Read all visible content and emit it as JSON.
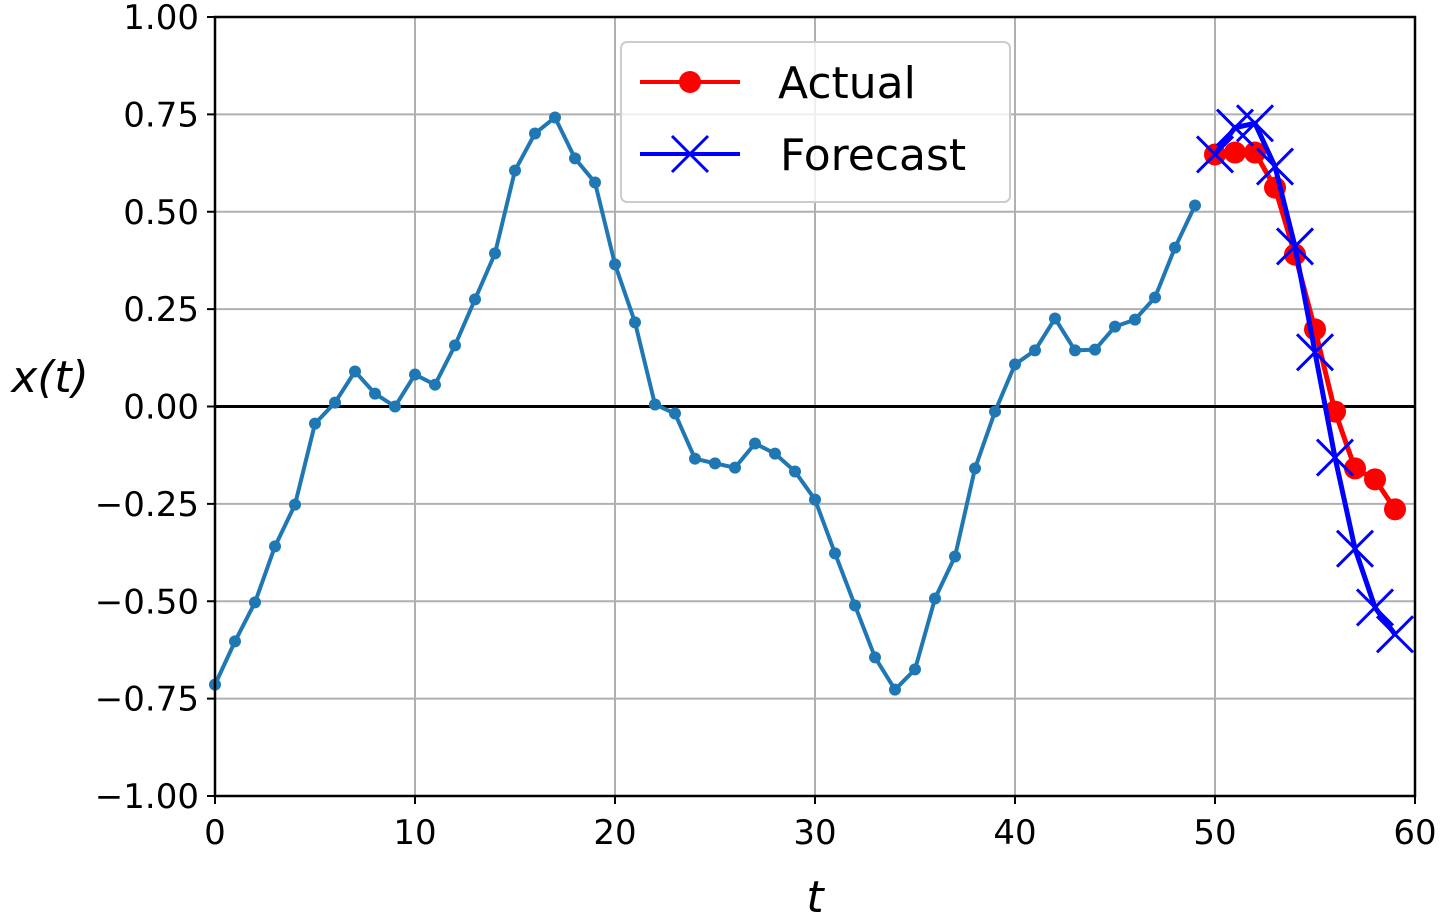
{
  "chart_data": {
    "type": "line",
    "xlabel": "t",
    "ylabel": "x(t)",
    "xlim": [
      0,
      60
    ],
    "ylim": [
      -1.0,
      1.0
    ],
    "xticks": [
      "0",
      "10",
      "20",
      "30",
      "40",
      "50",
      "60"
    ],
    "yticks": [
      "−1.00",
      "−0.75",
      "−0.50",
      "−0.25",
      "0.00",
      "0.25",
      "0.50",
      "0.75",
      "1.00"
    ],
    "grid": true,
    "zero_line": true,
    "legend_position": "top-center",
    "series": [
      {
        "color": "#1f77b4",
        "marker": "dot",
        "x": [
          0,
          1,
          2,
          3,
          4,
          5,
          6,
          7,
          8,
          9,
          10,
          11,
          12,
          13,
          14,
          15,
          16,
          17,
          18,
          19,
          20,
          21,
          22,
          23,
          24,
          25,
          26,
          27,
          28,
          29,
          30,
          31,
          32,
          33,
          34,
          35,
          36,
          37,
          38,
          39,
          40,
          41,
          42,
          43,
          44,
          45,
          46,
          47,
          48,
          49
        ],
        "y": [
          -0.714,
          -0.603,
          -0.503,
          -0.359,
          -0.252,
          -0.044,
          0.01,
          0.09,
          0.033,
          0.0,
          0.082,
          0.056,
          0.157,
          0.275,
          0.393,
          0.606,
          0.701,
          0.742,
          0.637,
          0.575,
          0.365,
          0.216,
          0.005,
          -0.018,
          -0.134,
          -0.146,
          -0.157,
          -0.095,
          -0.121,
          -0.167,
          -0.239,
          -0.377,
          -0.511,
          -0.644,
          -0.727,
          -0.675,
          -0.493,
          -0.385,
          -0.159,
          -0.013,
          0.108,
          0.144,
          0.226,
          0.144,
          0.146,
          0.205,
          0.223,
          0.28,
          0.408,
          0.516
        ]
      },
      {
        "name": "Actual",
        "color": "#ff0000",
        "marker": "circle",
        "x": [
          50,
          51,
          52,
          53,
          54,
          55,
          56,
          57,
          58,
          59
        ],
        "y": [
          0.647,
          0.652,
          0.652,
          0.562,
          0.39,
          0.198,
          -0.013,
          -0.159,
          -0.187,
          -0.264
        ]
      },
      {
        "name": "Forecast",
        "color": "#0000ff",
        "marker": "x",
        "x": [
          50,
          51,
          52,
          53,
          54,
          55,
          56,
          57,
          58,
          59
        ],
        "y": [
          0.647,
          0.716,
          0.727,
          0.616,
          0.411,
          0.139,
          -0.131,
          -0.365,
          -0.516,
          -0.585
        ]
      }
    ]
  }
}
